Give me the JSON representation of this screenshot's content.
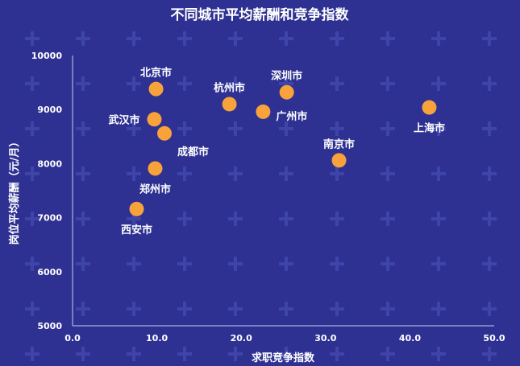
{
  "chart_data": {
    "type": "scatter",
    "title": "不同城市平均薪酬和竞争指数",
    "xlabel": "求职竞争指数",
    "ylabel": "岗位平均薪酬（元/月）",
    "xlim": [
      0,
      50
    ],
    "ylim": [
      5000,
      10000
    ],
    "x_ticks": [
      "0.0",
      "10.0",
      "20.0",
      "30.0",
      "40.0",
      "50.0"
    ],
    "y_ticks": [
      "5000",
      "6000",
      "7000",
      "8000",
      "9000",
      "10000"
    ],
    "grid": false,
    "point_color": "#f7a23b",
    "background_color": "#2e3192",
    "points": [
      {
        "label": "北京市",
        "x": 9.9,
        "y": 9380,
        "label_pos": "above"
      },
      {
        "label": "武汉市",
        "x": 9.7,
        "y": 8820,
        "label_pos": "left"
      },
      {
        "label": "成都市",
        "x": 10.9,
        "y": 8560,
        "label_pos": "below-right"
      },
      {
        "label": "郑州市",
        "x": 9.8,
        "y": 7910,
        "label_pos": "below"
      },
      {
        "label": "西安市",
        "x": 7.6,
        "y": 7160,
        "label_pos": "below"
      },
      {
        "label": "杭州市",
        "x": 18.6,
        "y": 9100,
        "label_pos": "above"
      },
      {
        "label": "广州市",
        "x": 22.6,
        "y": 8960,
        "label_pos": "right"
      },
      {
        "label": "深圳市",
        "x": 25.4,
        "y": 9320,
        "label_pos": "above"
      },
      {
        "label": "南京市",
        "x": 31.6,
        "y": 8060,
        "label_pos": "above"
      },
      {
        "label": "上海市",
        "x": 42.3,
        "y": 9040,
        "label_pos": "below"
      }
    ]
  }
}
